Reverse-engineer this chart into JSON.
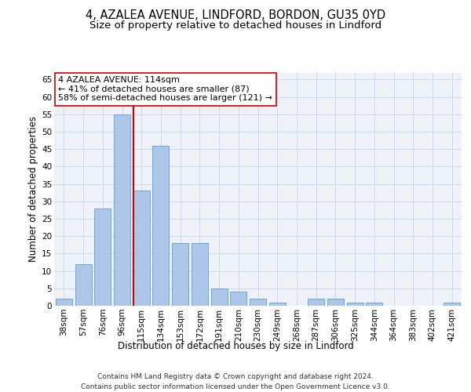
{
  "title_line1": "4, AZALEA AVENUE, LINDFORD, BORDON, GU35 0YD",
  "title_line2": "Size of property relative to detached houses in Lindford",
  "xlabel": "Distribution of detached houses by size in Lindford",
  "ylabel": "Number of detached properties",
  "categories": [
    "38sqm",
    "57sqm",
    "76sqm",
    "96sqm",
    "115sqm",
    "134sqm",
    "153sqm",
    "172sqm",
    "191sqm",
    "210sqm",
    "230sqm",
    "249sqm",
    "268sqm",
    "287sqm",
    "306sqm",
    "325sqm",
    "344sqm",
    "364sqm",
    "383sqm",
    "402sqm",
    "421sqm"
  ],
  "values": [
    2,
    12,
    28,
    55,
    33,
    46,
    18,
    18,
    5,
    4,
    2,
    1,
    0,
    2,
    2,
    1,
    1,
    0,
    0,
    0,
    1
  ],
  "bar_color": "#aec6e8",
  "bar_edge_color": "#5a9fd4",
  "highlight_line_color": "#cc0000",
  "annotation_text": "4 AZALEA AVENUE: 114sqm\n← 41% of detached houses are smaller (87)\n58% of semi-detached houses are larger (121) →",
  "annotation_box_color": "#ffffff",
  "annotation_box_edge": "#cc0000",
  "ylim": [
    0,
    67
  ],
  "yticks": [
    0,
    5,
    10,
    15,
    20,
    25,
    30,
    35,
    40,
    45,
    50,
    55,
    60,
    65
  ],
  "grid_color": "#c8d4e8",
  "background_color": "#eef2f8",
  "footer_line1": "Contains HM Land Registry data © Crown copyright and database right 2024.",
  "footer_line2": "Contains public sector information licensed under the Open Government Licence v3.0.",
  "title_fontsize": 10.5,
  "subtitle_fontsize": 9.5,
  "axis_label_fontsize": 8.5,
  "tick_fontsize": 7.5,
  "footer_fontsize": 6.5,
  "annot_fontsize": 8
}
